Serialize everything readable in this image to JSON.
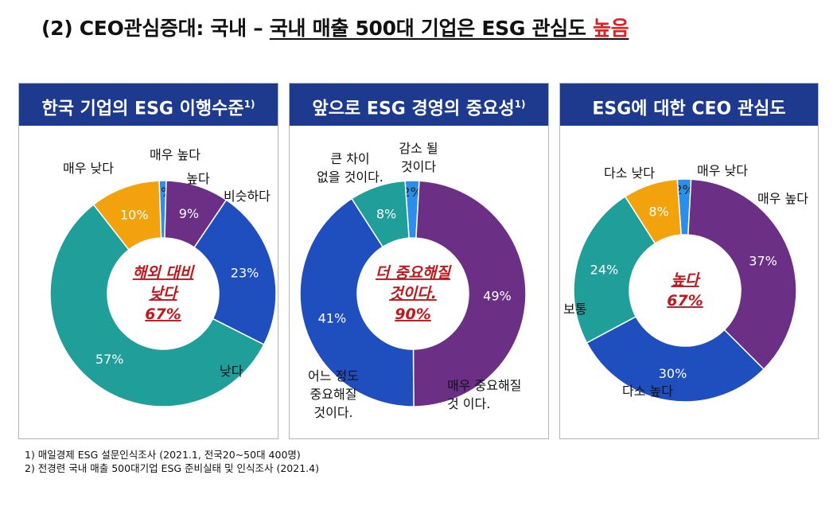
{
  "page": {
    "title_prefix": "(2) CEO관심증대: 국내 – ",
    "title_underlined": "국내 매출 500대 기업은 ESG 관심도 ",
    "title_highlight": "높음"
  },
  "colors": {
    "header_bg": "#1e3a8f",
    "teal": "#1f9e9a",
    "blue": "#1f4fbf",
    "purple": "#6b2f86",
    "orange": "#f2a20c",
    "light_blue": "#2b8ee8",
    "callout_red": "#c0171d"
  },
  "footnotes": [
    "1) 매일경제 ESG 설문인식조사 (2021.1, 전국20~50대 400명)",
    "2) 전경련 국내 매출 500대기업 ESG 준비실태 및 인식조사 (2021.4)"
  ],
  "chart_data": [
    {
      "type": "pie",
      "variant": "donut",
      "title": "한국 기업의 ESG 이행수준",
      "title_sup": "1)",
      "center_text": [
        "해외 대비",
        "낮다",
        "67%"
      ],
      "slices": [
        {
          "label": "매우 높다",
          "value": 1,
          "value_label": "1%",
          "color": "#2b8ee8"
        },
        {
          "label": "높다",
          "value": 9,
          "value_label": "9%",
          "color": "#6b2f86"
        },
        {
          "label": "비슷하다",
          "value": 23,
          "value_label": "23%",
          "color": "#1f4fbf"
        },
        {
          "label": "낮다",
          "value": 57,
          "value_label": "57%",
          "color": "#1f9e9a"
        },
        {
          "label": "매우 낮다",
          "value": 10,
          "value_label": "10%",
          "color": "#f2a20c"
        }
      ]
    },
    {
      "type": "pie",
      "variant": "donut",
      "title": "앞으로 ESG 경영의 중요성",
      "title_sup": "1)",
      "center_text": [
        "더 중요해질",
        "것이다.",
        "90%"
      ],
      "slices": [
        {
          "label": "감소 될 것이다",
          "value": 2,
          "value_label": "2%",
          "color": "#2b8ee8"
        },
        {
          "label": "매우 중요해질 것 이다.",
          "value": 49,
          "value_label": "49%",
          "color": "#6b2f86"
        },
        {
          "label": "어느 정도 중요해질 것이다.",
          "value": 41,
          "value_label": "41%",
          "color": "#1f4fbf"
        },
        {
          "label": "큰 차이 없을 것이다.",
          "value": 8,
          "value_label": "8%",
          "color": "#1f9e9a"
        }
      ]
    },
    {
      "type": "pie",
      "variant": "donut",
      "title": "ESG에 대한 CEO 관심도",
      "title_sup": "",
      "center_text": [
        "높다",
        "67%"
      ],
      "slices": [
        {
          "label": "매우 낮다",
          "value": 2,
          "value_label": "2%",
          "color": "#2b8ee8"
        },
        {
          "label": "매우 높다",
          "value": 37,
          "value_label": "37%",
          "color": "#6b2f86"
        },
        {
          "label": "다소 높다",
          "value": 30,
          "value_label": "30%",
          "color": "#1f4fbf"
        },
        {
          "label": "보통",
          "value": 24,
          "value_label": "24%",
          "color": "#1f9e9a"
        },
        {
          "label": "다소 낮다",
          "value": 8,
          "value_label": "8%",
          "color": "#f2a20c"
        }
      ]
    }
  ]
}
